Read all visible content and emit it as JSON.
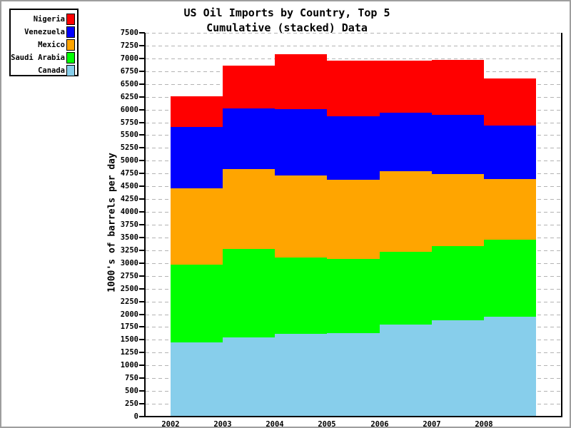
{
  "frame": {
    "background": "#ffffff",
    "border_color": "#9e9e9e"
  },
  "title": {
    "line1": "US Oil Imports by Country, Top 5",
    "line2": "Cumulative (stacked) Data"
  },
  "legend": {
    "position": "top-left",
    "items": [
      {
        "label": "Nigeria",
        "color": "#ff0000"
      },
      {
        "label": "Venezuela",
        "color": "#0000ff"
      },
      {
        "label": "Mexico",
        "color": "#ffa500"
      },
      {
        "label": "Saudi Arabia",
        "color": "#00ff00"
      },
      {
        "label": "Canada",
        "color": "#87ceeb"
      }
    ]
  },
  "chart_data": {
    "type": "area",
    "variant": "stacked-step",
    "title": "US Oil Imports by Country, Top 5 / Cumulative (stacked) Data",
    "ylabel": "1000's of barrels per day",
    "xlabel": "",
    "x": [
      "2002",
      "2003",
      "2004",
      "2005",
      "2006",
      "2007",
      "2008"
    ],
    "series": [
      {
        "name": "Canada",
        "color": "#87ceeb",
        "values": [
          1445,
          1549,
          1616,
          1633,
          1802,
          1888,
          1956
        ]
      },
      {
        "name": "Saudi Arabia",
        "color": "#00ff00",
        "values": [
          1519,
          1726,
          1495,
          1445,
          1421,
          1447,
          1503
        ]
      },
      {
        "name": "Mexico",
        "color": "#ffa500",
        "values": [
          1500,
          1569,
          1598,
          1556,
          1577,
          1409,
          1187
        ]
      },
      {
        "name": "Venezuela",
        "color": "#0000ff",
        "values": [
          1201,
          1183,
          1297,
          1241,
          1142,
          1148,
          1039
        ]
      },
      {
        "name": "Nigeria",
        "color": "#ff0000",
        "values": [
          589,
          832,
          1078,
          1077,
          1019,
          1084,
          922
        ]
      }
    ],
    "stacked_totals_per_year": [
      [
        1445,
        2964,
        4464,
        5665,
        6254
      ],
      [
        1549,
        3275,
        4844,
        6027,
        6859
      ],
      [
        1616,
        3111,
        4709,
        6006,
        7084
      ],
      [
        1633,
        3078,
        4634,
        5875,
        6952
      ],
      [
        1802,
        3223,
        4800,
        5942,
        6961
      ],
      [
        1888,
        3335,
        4744,
        5892,
        6976
      ],
      [
        1956,
        3459,
        4646,
        5685,
        6607
      ]
    ],
    "ylim": [
      0,
      7500
    ],
    "ytick_step": 250,
    "yticks": [
      0,
      250,
      500,
      750,
      1000,
      1250,
      1500,
      1750,
      2000,
      2250,
      2500,
      2750,
      3000,
      3250,
      3500,
      3750,
      4000,
      4250,
      4500,
      4750,
      5000,
      5250,
      5500,
      5750,
      6000,
      6250,
      6500,
      6750,
      7000,
      7250,
      7500
    ],
    "grid": "horizontal-dashed",
    "gridline_color": "#b3b3b3",
    "legend_position": "top-left",
    "legend_order_top_to_bottom": [
      "Nigeria",
      "Venezuela",
      "Mexico",
      "Saudi Arabia",
      "Canada"
    ]
  }
}
